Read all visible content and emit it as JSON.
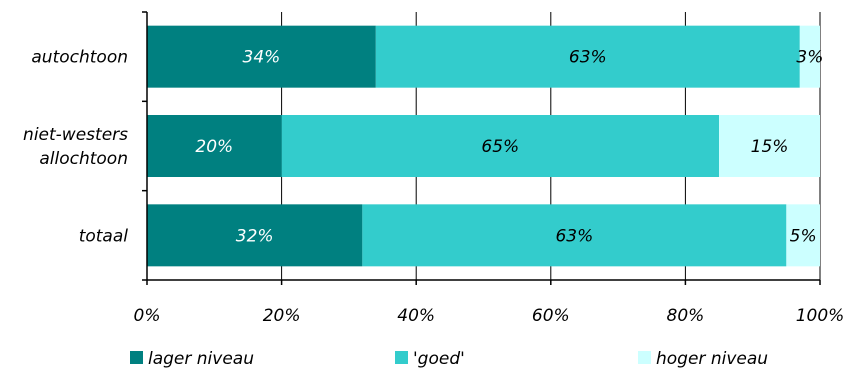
{
  "chart_data": {
    "type": "bar",
    "orientation": "horizontal",
    "stacked": "percent",
    "categories": [
      [
        "autochtoon"
      ],
      [
        "niet-westers",
        "allochtoon"
      ],
      [
        "totaal"
      ]
    ],
    "series": [
      {
        "name": "lager niveau",
        "values": [
          34,
          20,
          32
        ],
        "labels": [
          "34%",
          "20%",
          "32%"
        ],
        "color": "#008080",
        "label_color": "#ffffff"
      },
      {
        "name": "'goed'",
        "values": [
          63,
          65,
          63
        ],
        "labels": [
          "63%",
          "65%",
          "63%"
        ],
        "color": "#33CCCC",
        "label_color": "#000000"
      },
      {
        "name": "hoger niveau",
        "values": [
          3,
          15,
          5
        ],
        "labels": [
          "3%",
          "15%",
          "5%"
        ],
        "color": "#CCFFFF",
        "label_color": "#000000"
      }
    ],
    "xticks": [
      "0%",
      "20%",
      "40%",
      "60%",
      "80%",
      "100%"
    ],
    "xlim": [
      0,
      100
    ],
    "grid": "vertical",
    "legend_position": "bottom"
  }
}
